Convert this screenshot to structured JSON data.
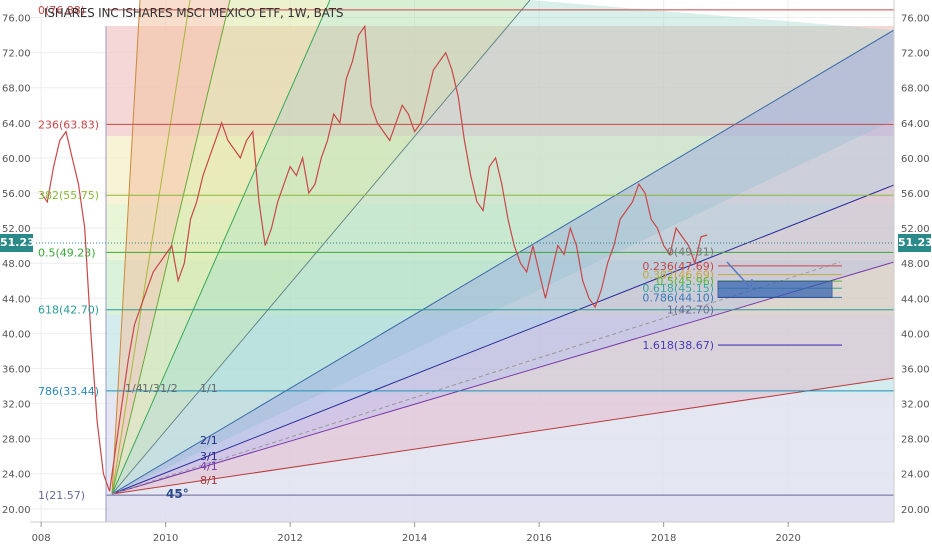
{
  "header": {
    "title": "ISHARES INC ISHARES MSCI MEXICO ETF, 1W, BATS"
  },
  "last_price": "51.23",
  "colors": {
    "accent_price": "#2a8a8a",
    "fan_base": "#6a6a9a",
    "retracement_box": "#3060b0"
  },
  "chart_data": {
    "type": "line",
    "title": "ISHARES INC ISHARES MSCI MEXICO ETF, 1W, BATS",
    "xlim": [
      2007.95,
      2021.7
    ],
    "ylim": [
      18.5,
      78
    ],
    "x_ticks": [
      "2008",
      "2010",
      "2012",
      "2014",
      "2016",
      "2018",
      "2020"
    ],
    "y_ticks": [
      "76.00",
      "72.00",
      "68.00",
      "64.00",
      "60.00",
      "56.00",
      "52.00",
      "48.00",
      "44.00",
      "40.00",
      "36.00",
      "32.00",
      "28.00",
      "24.00",
      "20.00"
    ],
    "series": [
      {
        "x": [
          2008.0,
          2008.1,
          2008.2,
          2008.3,
          2008.4,
          2008.5,
          2008.6,
          2008.7,
          2008.8,
          2008.9,
          2009.0,
          2009.1,
          2009.2,
          2009.3,
          2009.4,
          2009.5,
          2009.6,
          2009.7,
          2009.8,
          2009.9,
          2010.0,
          2010.1,
          2010.2,
          2010.3,
          2010.4,
          2010.5,
          2010.6,
          2010.7,
          2010.8,
          2010.9,
          2011.0,
          2011.1,
          2011.2,
          2011.3,
          2011.4,
          2011.5,
          2011.6,
          2011.7,
          2011.8,
          2011.9,
          2012.0,
          2012.1,
          2012.2,
          2012.3,
          2012.4,
          2012.5,
          2012.6,
          2012.7,
          2012.8,
          2012.9,
          2013.0,
          2013.1,
          2013.2,
          2013.3,
          2013.4,
          2013.5,
          2013.6,
          2013.7,
          2013.8,
          2013.9,
          2014.0,
          2014.1,
          2014.2,
          2014.3,
          2014.4,
          2014.5,
          2014.6,
          2014.7,
          2014.8,
          2014.9,
          2015.0,
          2015.1,
          2015.2,
          2015.3,
          2015.4,
          2015.5,
          2015.6,
          2015.7,
          2015.8,
          2015.9,
          2016.0,
          2016.1,
          2016.2,
          2016.3,
          2016.4,
          2016.5,
          2016.6,
          2016.7,
          2016.8,
          2016.9,
          2017.0,
          2017.1,
          2017.2,
          2017.3,
          2017.4,
          2017.5,
          2017.6,
          2017.7,
          2017.8,
          2017.9,
          2018.0,
          2018.1,
          2018.2,
          2018.3,
          2018.4,
          2018.5,
          2018.6,
          2018.7
        ],
        "values": [
          56,
          55,
          59,
          62,
          63,
          60,
          57,
          52,
          40,
          30,
          24,
          22,
          27,
          32,
          37,
          41,
          43,
          45,
          47,
          48,
          49,
          50,
          46,
          48,
          53,
          55,
          58,
          60,
          62,
          64,
          62,
          61,
          60,
          62,
          63,
          55,
          50,
          52,
          55,
          57,
          59,
          58,
          60,
          56,
          57,
          60,
          62,
          65,
          64,
          69,
          71,
          74,
          75,
          66,
          64,
          63,
          62,
          64,
          66,
          65,
          63,
          64,
          67,
          70,
          71,
          72,
          70,
          67,
          62,
          58,
          55,
          54,
          59,
          60,
          57,
          53,
          50,
          48,
          47,
          50,
          47,
          44,
          47,
          50,
          49,
          52,
          50,
          46,
          44,
          43,
          45,
          48,
          50,
          53,
          54,
          55,
          57,
          56,
          53,
          52,
          50,
          49,
          52,
          51,
          50,
          48,
          51,
          51.23
        ]
      }
    ],
    "fibonacci_retracement_left": [
      {
        "label": "0(76.88)",
        "value": 76.88
      },
      {
        "label": "236(63.83)",
        "value": 63.83
      },
      {
        "label": "382(55.75)",
        "value": 55.75
      },
      {
        "label": "0.5(49.23)",
        "value": 49.23
      },
      {
        "label": "618(42.70)",
        "value": 42.7
      },
      {
        "label": "786(33.44)",
        "value": 33.44
      },
      {
        "label": "1(21.57)",
        "value": 21.57
      }
    ],
    "fibonacci_extension_right": [
      {
        "label": "0(49.31)",
        "value": 49.31
      },
      {
        "label": "0.236(47.69)",
        "value": 47.69
      },
      {
        "label": "0.382(46.69)",
        "value": 46.69
      },
      {
        "label": "0.5(45.96)",
        "value": 45.96
      },
      {
        "label": "0.618(45.15)",
        "value": 45.15
      },
      {
        "label": "0.786(44.10)",
        "value": 44.1
      },
      {
        "label": "1(42.70)",
        "value": 42.7
      },
      {
        "label": "1.618(38.67)",
        "value": 38.67
      }
    ],
    "gann_fan_labels": [
      "1/1",
      "1/2",
      "1/3",
      "1/4",
      "2/1",
      "3/1",
      "4/1",
      "8/1",
      "45°"
    ],
    "grid": true,
    "legend": "none"
  }
}
